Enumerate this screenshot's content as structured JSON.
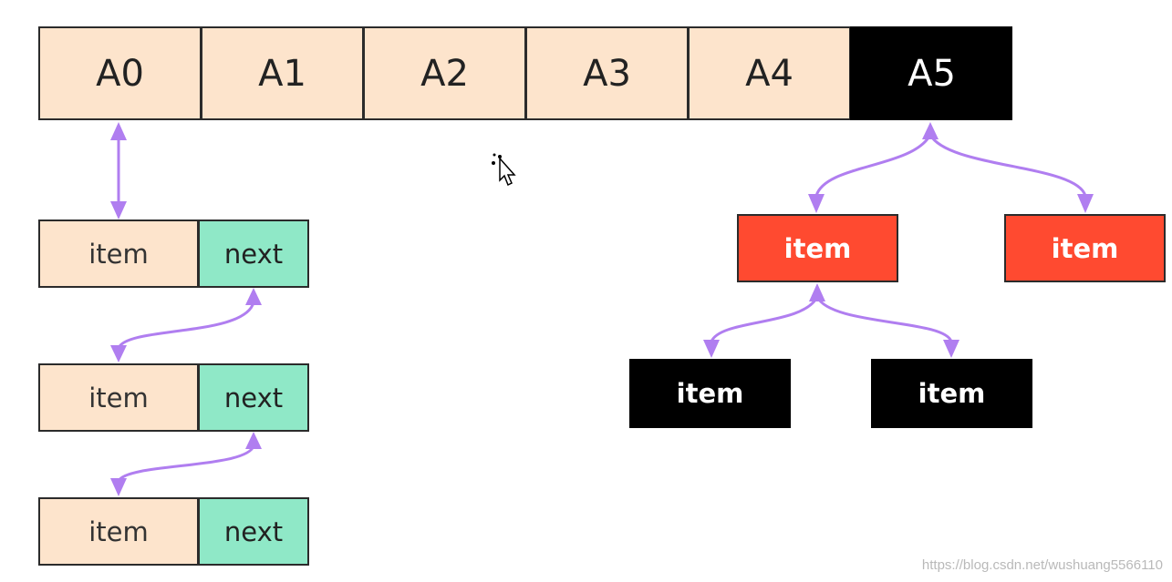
{
  "array": {
    "cells": [
      {
        "label": "A0",
        "style": "light"
      },
      {
        "label": "A1",
        "style": "light"
      },
      {
        "label": "A2",
        "style": "light"
      },
      {
        "label": "A3",
        "style": "light"
      },
      {
        "label": "A4",
        "style": "light"
      },
      {
        "label": "A5",
        "style": "dark"
      }
    ]
  },
  "linked_list": {
    "nodes": [
      {
        "item_label": "item",
        "next_label": "next"
      },
      {
        "item_label": "item",
        "next_label": "next"
      },
      {
        "item_label": "item",
        "next_label": "next"
      }
    ]
  },
  "tree": {
    "level1": [
      {
        "label": "item"
      },
      {
        "label": "item"
      }
    ],
    "level2": [
      {
        "label": "item"
      },
      {
        "label": "item"
      }
    ]
  },
  "colors": {
    "array_light": "#fde4cc",
    "array_dark": "#000000",
    "next_fill": "#8fe8c7",
    "tree_red": "#ff4a30",
    "arrow": "#b07ef0"
  },
  "watermark": "https://blog.csdn.net/wushuang5566110"
}
